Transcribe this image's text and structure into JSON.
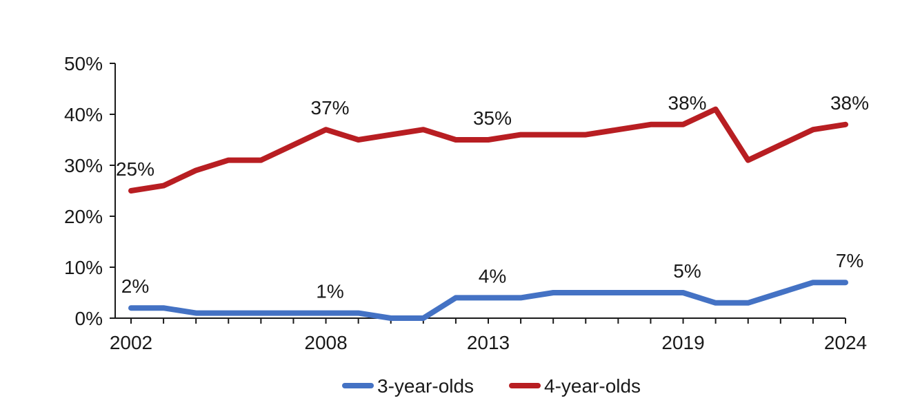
{
  "chart_data": {
    "type": "line",
    "x": [
      2002,
      2003,
      2004,
      2005,
      2006,
      2007,
      2008,
      2009,
      2010,
      2011,
      2012,
      2013,
      2014,
      2015,
      2016,
      2017,
      2018,
      2019,
      2020,
      2021,
      2022,
      2023,
      2024
    ],
    "x_tick_labels": [
      "2002",
      "2008",
      "2013",
      "2019",
      "2024"
    ],
    "y_tick_labels": [
      "0%",
      "10%",
      "20%",
      "30%",
      "40%",
      "50%"
    ],
    "ylim": [
      0,
      50
    ],
    "y_unit": "%",
    "grid": false,
    "legend_position": "bottom",
    "series": [
      {
        "name": "3-year-olds",
        "color": "#4472C4",
        "values": [
          2,
          2,
          1,
          1,
          1,
          1,
          1,
          1,
          0,
          0,
          4,
          4,
          4,
          5,
          5,
          5,
          5,
          5,
          3,
          3,
          5,
          7,
          7
        ],
        "labels": [
          {
            "x": 2002,
            "y": 2,
            "text": "2%"
          },
          {
            "x": 2008,
            "y": 1,
            "text": "1%"
          },
          {
            "x": 2013,
            "y": 4,
            "text": "4%"
          },
          {
            "x": 2019,
            "y": 5,
            "text": "5%"
          },
          {
            "x": 2024,
            "y": 7,
            "text": "7%"
          }
        ]
      },
      {
        "name": "4-year-olds",
        "color": "#B81E22",
        "values": [
          25,
          26,
          29,
          31,
          31,
          34,
          37,
          35,
          36,
          37,
          35,
          35,
          36,
          36,
          36,
          37,
          38,
          38,
          41,
          31,
          34,
          37,
          38
        ],
        "labels": [
          {
            "x": 2002,
            "y": 25,
            "text": "25%"
          },
          {
            "x": 2008,
            "y": 37,
            "text": "37%"
          },
          {
            "x": 2013,
            "y": 35,
            "text": "35%"
          },
          {
            "x": 2019,
            "y": 38,
            "text": "38%"
          },
          {
            "x": 2024,
            "y": 38,
            "text": "38%"
          }
        ]
      }
    ]
  }
}
